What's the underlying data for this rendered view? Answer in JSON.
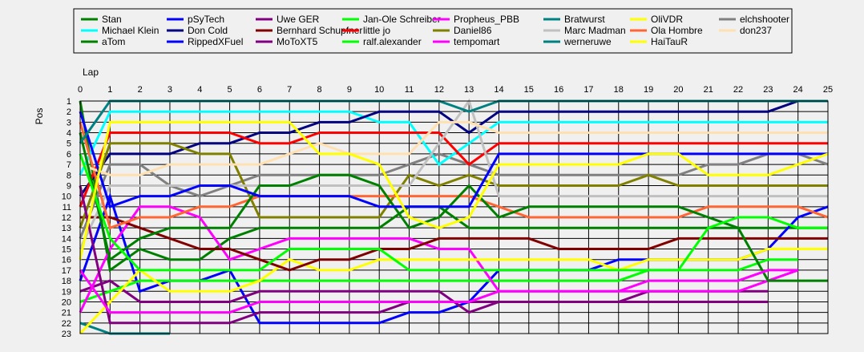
{
  "chart_data": {
    "type": "line",
    "xlabel": "Lap",
    "ylabel": "Pos",
    "xlim": [
      0,
      25
    ],
    "ylim": [
      1,
      23
    ],
    "x_ticks": [
      0,
      1,
      2,
      3,
      4,
      5,
      6,
      7,
      8,
      9,
      10,
      11,
      12,
      13,
      14,
      15,
      16,
      17,
      18,
      19,
      20,
      21,
      22,
      23,
      24,
      25
    ],
    "y_ticks": [
      1,
      2,
      3,
      4,
      5,
      6,
      7,
      8,
      9,
      10,
      11,
      12,
      13,
      14,
      15,
      16,
      17,
      18,
      19,
      20,
      21,
      22,
      23
    ],
    "grid": true,
    "y_inverted": true,
    "legend_position": "top",
    "series": [
      {
        "name": "Stan",
        "color": "#008000",
        "x": [
          0,
          1,
          2,
          3,
          4,
          5,
          6,
          7,
          8,
          9,
          10,
          11,
          12,
          13,
          14,
          15,
          16,
          17,
          18,
          19,
          20,
          21,
          22,
          23,
          24,
          25
        ],
        "y": [
          1,
          17,
          15,
          16,
          16,
          14,
          13,
          13,
          13,
          13,
          13,
          11,
          11,
          13,
          13,
          13,
          13,
          13,
          13,
          13,
          13,
          13,
          13,
          13,
          13,
          13
        ]
      },
      {
        "name": "pSyTech",
        "color": "#0000ff",
        "x": [
          0,
          1,
          2,
          3,
          4,
          5,
          6,
          7,
          8,
          9,
          10,
          11,
          12,
          13,
          14,
          15,
          16,
          17,
          18,
          19,
          20,
          21,
          22,
          23,
          24,
          25
        ],
        "y": [
          18,
          10,
          19,
          18,
          18,
          17,
          22,
          22,
          22,
          22,
          22,
          21,
          21,
          20,
          17,
          17,
          17,
          17,
          16,
          16,
          16,
          16,
          16,
          15,
          12,
          11
        ]
      },
      {
        "name": "Uwe GER",
        "color": "#800080",
        "x": [
          0,
          1,
          2,
          3,
          4,
          5,
          6,
          7,
          8,
          9,
          10,
          11,
          12,
          13,
          14,
          15,
          16,
          17,
          18,
          19,
          20,
          21,
          22,
          23
        ],
        "y": [
          19,
          18,
          20,
          20,
          20,
          20,
          19,
          19,
          19,
          19,
          19,
          19,
          19,
          21,
          20,
          20,
          20,
          20,
          20,
          19,
          19,
          19,
          19,
          19
        ]
      },
      {
        "name": "Jan-Ole Schreiber",
        "color": "#00ff00",
        "x": [
          0,
          1,
          2,
          3,
          4,
          5,
          6,
          7,
          8,
          9,
          10,
          11,
          12,
          13,
          14,
          15,
          16,
          17,
          18,
          19,
          20,
          21,
          22,
          23,
          24
        ],
        "y": [
          20,
          19,
          18,
          18,
          18,
          18,
          18,
          18,
          18,
          18,
          18,
          18,
          18,
          18,
          18,
          18,
          18,
          18,
          18,
          17,
          17,
          17,
          17,
          16,
          16
        ]
      },
      {
        "name": "Propheus_PBB",
        "color": "#ff00ff",
        "x": [
          0,
          1,
          2,
          3,
          4,
          5,
          6,
          7,
          8,
          9,
          10,
          11,
          12,
          13,
          14,
          15,
          16,
          17,
          18,
          19,
          20,
          21,
          22,
          23,
          24
        ],
        "y": [
          21,
          15,
          11,
          11,
          12,
          16,
          15,
          14,
          14,
          14,
          14,
          14,
          15,
          15,
          19,
          19,
          19,
          19,
          19,
          19,
          19,
          19,
          19,
          18,
          17
        ]
      },
      {
        "name": "Bratwurst",
        "color": "#008080",
        "x": [
          0,
          1,
          2,
          3
        ],
        "y": [
          22,
          23,
          23,
          23
        ]
      },
      {
        "name": "OliVDR",
        "color": "#ffff00",
        "x": [
          0,
          1,
          2,
          3,
          4,
          5,
          6,
          7,
          8,
          9,
          10,
          11,
          12,
          13,
          14,
          15,
          16,
          17,
          18,
          19,
          20,
          21,
          22,
          23,
          24,
          25
        ],
        "y": [
          23,
          20,
          17,
          19,
          19,
          19,
          18,
          16,
          17,
          17,
          16,
          16,
          16,
          16,
          16,
          16,
          16,
          16,
          17,
          16,
          16,
          16,
          16,
          15,
          15,
          15
        ]
      },
      {
        "name": "elchshooter",
        "color": "#808080",
        "x": [
          0,
          1,
          2,
          3,
          4,
          5,
          6,
          7,
          8,
          9,
          10,
          11,
          12,
          13,
          14,
          15,
          16,
          17,
          18,
          19,
          20,
          21,
          22,
          23,
          24,
          25
        ],
        "y": [
          14,
          7,
          7,
          9,
          10,
          9,
          8,
          8,
          8,
          8,
          8,
          7,
          6,
          7,
          8,
          8,
          8,
          8,
          8,
          8,
          8,
          7,
          7,
          6,
          6,
          7
        ]
      },
      {
        "name": "Michael Klein",
        "color": "#00ffff",
        "x": [
          0,
          1,
          2,
          3,
          4,
          5,
          6,
          7,
          8,
          9,
          10,
          11,
          12,
          13,
          14,
          15,
          16,
          17,
          18,
          19,
          20,
          21,
          22,
          23,
          24,
          25
        ],
        "y": [
          8,
          2,
          2,
          2,
          2,
          2,
          2,
          2,
          2,
          2,
          3,
          3,
          7,
          5,
          3,
          3,
          3,
          3,
          3,
          3,
          3,
          3,
          3,
          3,
          3,
          3
        ]
      },
      {
        "name": "Don Cold",
        "color": "#000080",
        "x": [
          0,
          1,
          2,
          3,
          4,
          5,
          6,
          7,
          8,
          9,
          10,
          11,
          12,
          13,
          14,
          15,
          16,
          17,
          18,
          19,
          20,
          21,
          22,
          23,
          24,
          25
        ],
        "y": [
          10,
          6,
          6,
          6,
          5,
          5,
          4,
          4,
          3,
          3,
          2,
          2,
          2,
          4,
          2,
          2,
          2,
          2,
          2,
          2,
          2,
          2,
          2,
          2,
          1,
          1
        ]
      },
      {
        "name": "Bernhard Schupfner",
        "color": "#800000",
        "x": [
          0,
          1,
          2,
          3,
          4,
          5,
          6,
          7,
          8,
          9,
          10,
          11,
          12,
          13,
          14,
          15,
          16,
          17,
          18,
          19,
          20,
          21,
          22,
          23,
          24,
          25
        ],
        "y": [
          12,
          12,
          13,
          14,
          15,
          15,
          16,
          17,
          16,
          16,
          15,
          15,
          14,
          14,
          14,
          14,
          15,
          15,
          15,
          15,
          14,
          14,
          14,
          14,
          14,
          14
        ]
      },
      {
        "name": "little jo",
        "color": "#ff0000",
        "x": [
          0,
          1,
          2,
          3,
          4,
          5,
          6,
          7,
          8,
          9,
          10,
          11,
          12,
          13,
          14,
          15,
          16,
          17,
          18,
          19,
          20,
          21,
          22,
          23,
          24,
          25
        ],
        "y": [
          11,
          4,
          4,
          4,
          4,
          4,
          5,
          5,
          4,
          4,
          4,
          4,
          4,
          7,
          5,
          5,
          5,
          5,
          5,
          5,
          5,
          5,
          5,
          5,
          5,
          5
        ]
      },
      {
        "name": "Daniel86",
        "color": "#808000",
        "x": [
          0,
          1,
          2,
          3,
          4,
          5,
          6,
          7,
          8,
          9,
          10,
          11,
          12,
          13,
          14,
          15,
          16,
          17,
          18,
          19,
          20,
          21,
          22,
          23,
          24,
          25
        ],
        "y": [
          13,
          5,
          5,
          5,
          6,
          6,
          12,
          12,
          12,
          12,
          12,
          8,
          9,
          8,
          9,
          9,
          9,
          9,
          9,
          8,
          9,
          9,
          9,
          9,
          9,
          9
        ]
      },
      {
        "name": "Marc Madman",
        "color": "#c0c0c0",
        "x": [
          0,
          1,
          2,
          3,
          4,
          5,
          6,
          7,
          8,
          9,
          10,
          11,
          12,
          13,
          14,
          15,
          16,
          17,
          18,
          19,
          20,
          21,
          22,
          23,
          24,
          25
        ],
        "y": [
          15,
          9,
          9,
          9,
          9,
          9,
          9,
          9,
          9,
          9,
          9,
          9,
          5,
          1,
          10,
          10,
          10,
          10,
          10,
          10,
          10,
          10,
          10,
          10,
          10,
          10
        ]
      },
      {
        "name": "Ola Hombre",
        "color": "#ff6633",
        "x": [
          0,
          1,
          2,
          3,
          4,
          5,
          6,
          7,
          8,
          9,
          10,
          11,
          12,
          13,
          14,
          15,
          16,
          17,
          18,
          19,
          20,
          21,
          22,
          23,
          24,
          25
        ],
        "y": [
          3,
          13,
          12,
          12,
          11,
          11,
          10,
          10,
          10,
          10,
          10,
          10,
          10,
          10,
          11,
          12,
          12,
          12,
          12,
          12,
          12,
          11,
          11,
          11,
          11,
          12
        ]
      },
      {
        "name": "don237",
        "color": "#ffe0b0",
        "x": [
          0,
          1,
          2,
          3,
          4,
          5,
          6,
          7,
          8,
          9,
          10,
          11,
          12,
          13,
          14,
          15,
          16,
          17,
          18,
          19,
          20,
          21,
          22,
          23,
          24,
          25
        ],
        "y": [
          7,
          8,
          8,
          7,
          7,
          7,
          7,
          6,
          5,
          6,
          6,
          6,
          3,
          3,
          4,
          4,
          4,
          4,
          4,
          4,
          4,
          4,
          4,
          4,
          4,
          4
        ]
      },
      {
        "name": "aTom",
        "color": "#008000",
        "x": [
          0,
          1,
          2,
          3,
          4,
          5,
          6,
          7,
          8,
          9,
          10,
          11,
          12,
          13,
          14,
          15,
          16,
          17,
          18,
          19,
          20,
          21,
          22,
          23,
          24,
          25
        ],
        "y": [
          4,
          16,
          14,
          13,
          13,
          13,
          9,
          9,
          8,
          8,
          9,
          13,
          12,
          9,
          12,
          11,
          11,
          11,
          11,
          11,
          11,
          12,
          13,
          18,
          18,
          18
        ]
      },
      {
        "name": "RippedXFuel",
        "color": "#0000ff",
        "x": [
          0,
          1,
          2,
          3,
          4,
          5,
          6,
          7,
          8,
          9,
          10,
          11,
          12,
          13,
          14,
          15,
          16,
          17,
          18,
          19,
          20,
          21,
          22,
          23,
          24,
          25
        ],
        "y": [
          2,
          11,
          10,
          10,
          9,
          9,
          10,
          10,
          10,
          10,
          11,
          11,
          11,
          11,
          6,
          6,
          6,
          6,
          6,
          6,
          6,
          6,
          6,
          6,
          6,
          6
        ]
      },
      {
        "name": "MoToXT5",
        "color": "#800080",
        "x": [
          0,
          1,
          2,
          3,
          4,
          5,
          6,
          7,
          8,
          9,
          10,
          11,
          12,
          13,
          14,
          15,
          16,
          17,
          18,
          19,
          20,
          21,
          22,
          23
        ],
        "y": [
          9,
          22,
          22,
          22,
          22,
          22,
          21,
          21,
          21,
          21,
          21,
          20,
          20,
          20,
          20,
          20,
          20,
          20,
          20,
          20,
          20,
          20,
          20,
          20
        ]
      },
      {
        "name": "ralf.alexander",
        "color": "#00ff00",
        "x": [
          0,
          1,
          2,
          3,
          4,
          5,
          6,
          7,
          8,
          9,
          10,
          11,
          12,
          13,
          14,
          15,
          16,
          17,
          18,
          19,
          20,
          21,
          22,
          23,
          24,
          25
        ],
        "y": [
          6,
          14,
          17,
          17,
          17,
          17,
          17,
          15,
          15,
          15,
          15,
          17,
          17,
          17,
          17,
          17,
          17,
          17,
          17,
          17,
          17,
          13,
          12,
          12,
          13,
          13
        ]
      },
      {
        "name": "tempomart",
        "color": "#ff00ff",
        "x": [
          0,
          1,
          2,
          3,
          4,
          5,
          6,
          7,
          8,
          9,
          10,
          11,
          12,
          13,
          14,
          15,
          16,
          17,
          18,
          19,
          20,
          21,
          22,
          23,
          24
        ],
        "y": [
          17,
          21,
          21,
          21,
          21,
          21,
          20,
          20,
          20,
          20,
          20,
          20,
          20,
          20,
          19,
          19,
          19,
          19,
          19,
          18,
          18,
          18,
          18,
          17,
          17
        ]
      },
      {
        "name": "werneruwe",
        "color": "#008080",
        "x": [
          0,
          1,
          2,
          3,
          4,
          5,
          6,
          7,
          8,
          9,
          10,
          11,
          12,
          13,
          14,
          15,
          16,
          17,
          18,
          19,
          20,
          21,
          22,
          23,
          24,
          25
        ],
        "y": [
          5,
          1,
          1,
          1,
          1,
          1,
          1,
          1,
          1,
          1,
          1,
          1,
          1,
          2,
          1,
          1,
          1,
          1,
          1,
          1,
          1,
          1,
          1,
          1,
          1,
          1
        ]
      },
      {
        "name": "HaiTauR",
        "color": "#ffff00",
        "x": [
          0,
          1,
          2,
          3,
          4,
          5,
          6,
          7,
          8,
          9,
          10,
          11,
          12,
          13,
          14,
          15,
          16,
          17,
          18,
          19,
          20,
          21,
          22,
          23,
          24,
          25
        ],
        "y": [
          16,
          3,
          3,
          3,
          3,
          3,
          3,
          3,
          6,
          6,
          7,
          12,
          13,
          12,
          7,
          7,
          7,
          7,
          7,
          6,
          6,
          8,
          8,
          8,
          7,
          6
        ]
      }
    ]
  }
}
